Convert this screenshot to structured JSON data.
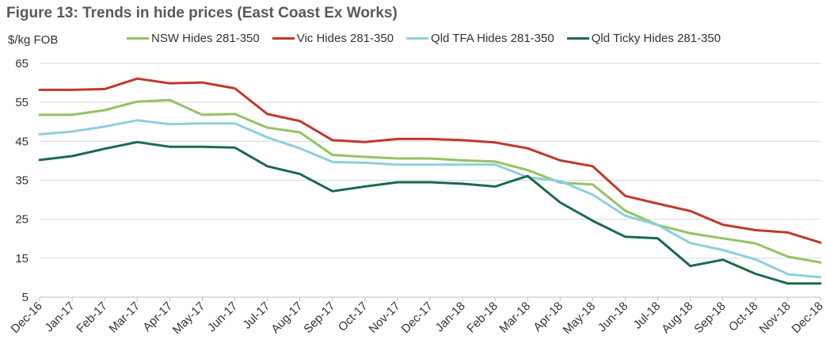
{
  "title": "Figure 13: Trends in hide prices (East Coast Ex Works)",
  "chart_data": {
    "type": "line",
    "title": "Figure 13: Trends in hide prices (East Coast Ex Works)",
    "ylabel": "$/kg FOB",
    "xlabel": "",
    "ylim": [
      5,
      65
    ],
    "yticks": [
      "65",
      "55",
      "45",
      "35",
      "25",
      "15",
      "5"
    ],
    "grid": true,
    "legend_position": "top",
    "categories": [
      "Dec-16",
      "Jan-17",
      "Feb-17",
      "Mar-17",
      "Apr-17",
      "May-17",
      "Jun-17",
      "Jul-17",
      "Aug-17",
      "Sep-17",
      "Oct-17",
      "Nov-17",
      "Dec-17",
      "Jan-18",
      "Feb-18",
      "Mar-18",
      "Apr-18",
      "May-18",
      "Jun-18",
      "Jul-18",
      "Aug-18",
      "Sep-18",
      "Oct-18",
      "Nov-18",
      "Dec-18"
    ],
    "series": [
      {
        "name": "NSW Hides 281-350",
        "color": "#92c464",
        "values": [
          51.8,
          51.8,
          53,
          55.2,
          55.6,
          51.8,
          52,
          48.5,
          47.3,
          41.5,
          41,
          40.6,
          40.6,
          40.1,
          39.8,
          37.6,
          34.4,
          33.9,
          27.2,
          23.5,
          21.4,
          20.1,
          18.8,
          15.4,
          13.9
        ]
      },
      {
        "name": "Vic Hides 281-350",
        "color": "#c0392b",
        "values": [
          58.2,
          58.2,
          58.4,
          61.1,
          59.9,
          60.1,
          58.6,
          52,
          50.2,
          45.3,
          44.8,
          45.6,
          45.6,
          45.3,
          44.7,
          43.2,
          40.1,
          38.6,
          31,
          29,
          27.1,
          23.6,
          22.2,
          21.6,
          19
        ]
      },
      {
        "name": "Qld TFA Hides 281-350",
        "color": "#8ecfde",
        "values": [
          46.8,
          47.5,
          48.8,
          50.4,
          49.4,
          49.6,
          49.6,
          46,
          43.2,
          39.7,
          39.5,
          39,
          39,
          39,
          39,
          35.8,
          34.8,
          31.3,
          25.9,
          23.5,
          18.9,
          17.1,
          14.7,
          10.9,
          10.1
        ]
      },
      {
        "name": "Qld Ticky Hides 281-350",
        "color": "#1b6b49",
        "values": [
          40.2,
          41.2,
          43.1,
          44.8,
          43.6,
          43.6,
          43.4,
          38.6,
          36.6,
          32.2,
          33.4,
          34.5,
          34.5,
          34.1,
          33.4,
          36.1,
          29.3,
          24.6,
          20.5,
          20.1,
          13,
          14.6,
          11,
          8.5,
          8.5
        ]
      }
    ]
  }
}
